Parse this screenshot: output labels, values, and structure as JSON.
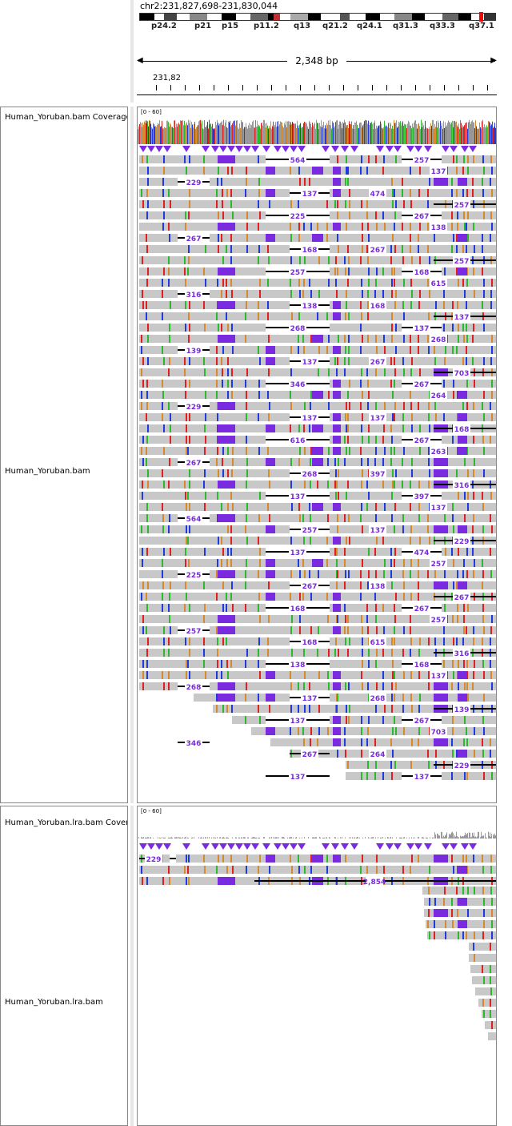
{
  "header": {
    "locus": "chr2:231,827,698-231,830,044",
    "span": "2,348 bp",
    "ruler_start": "231,82",
    "bands": [
      "p24.2",
      "p21",
      "p15",
      "p11.2",
      "q13",
      "q21.2",
      "q24.1",
      "q31.3",
      "q33.3",
      "q37.1"
    ]
  },
  "tracks": [
    {
      "name": "Human_Yoruban.bam Coverage"
    },
    {
      "name": "Human_Yoruban.bam"
    },
    {
      "name": "Human_Yoruban.lra.bam Coverage"
    },
    {
      "name": "Human_Yoruban.lra.bam"
    }
  ],
  "coverage_range": [
    "[0 - 60]",
    "[0 - 60]"
  ],
  "junctions": {
    "panel1": [
      "564",
      "257",
      "137",
      "229",
      "137",
      "474",
      "257",
      "225",
      "267",
      "138",
      "267",
      "168",
      "267",
      "257",
      "257",
      "168",
      "615",
      "316",
      "138",
      "168",
      "137",
      "268",
      "137",
      "268",
      "139",
      "137",
      "267",
      "703",
      "346",
      "267",
      "264",
      "229",
      "137",
      "137",
      "168",
      "616",
      "267",
      "263",
      "267",
      "268",
      "397",
      "316",
      "137",
      "397",
      "137"
    ],
    "panel2": [
      "229",
      "2,854"
    ]
  },
  "colors": {
    "read": "#c8c8c8",
    "insertion": "#7a2be0",
    "mismatch_a": "#2db92d",
    "mismatch_c": "#1f3be0",
    "mismatch_g": "#d68a2d",
    "mismatch_t": "#e02020",
    "centromere": "#c03030",
    "current_band": "#ff0000"
  }
}
